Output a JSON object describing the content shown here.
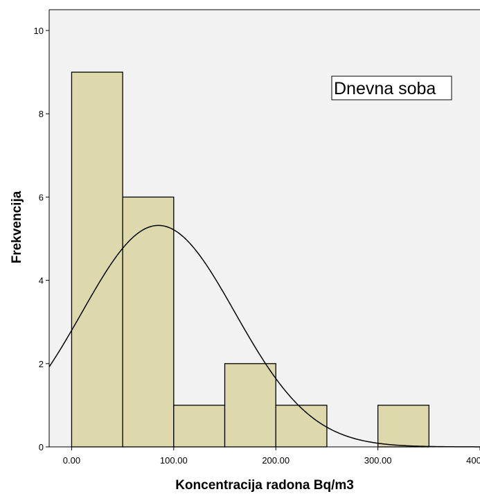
{
  "chart_data": {
    "type": "bar",
    "subtype": "histogram-with-normal-curve",
    "annotation": "Dnevna soba",
    "xlabel": "Koncentracija radona Bq/m3",
    "ylabel": "Frekvencija",
    "xlim": [
      -22,
      400
    ],
    "ylim": [
      0,
      10.5
    ],
    "x_ticks": [
      0,
      100,
      200,
      300,
      400
    ],
    "x_tick_labels": [
      "0.00",
      "100.00",
      "200.00",
      "300.00",
      "400.00"
    ],
    "y_ticks": [
      0,
      2,
      4,
      6,
      8,
      10
    ],
    "y_tick_labels": [
      "0",
      "2",
      "4",
      "6",
      "8",
      "10"
    ],
    "bins": [
      {
        "start": 0,
        "end": 50,
        "count": 9
      },
      {
        "start": 50,
        "end": 100,
        "count": 6
      },
      {
        "start": 100,
        "end": 150,
        "count": 1
      },
      {
        "start": 150,
        "end": 200,
        "count": 2
      },
      {
        "start": 200,
        "end": 250,
        "count": 1
      },
      {
        "start": 250,
        "end": 300,
        "count": 0
      },
      {
        "start": 300,
        "end": 350,
        "count": 1
      }
    ],
    "normal_curve": {
      "mean": 85,
      "sd": 75,
      "n": 20,
      "bin_width": 50
    },
    "colors": {
      "bar_fill": "#ded9ac",
      "bar_stroke": "#000000",
      "plot_bg": "#f2f2f2",
      "curve": "#000000"
    },
    "grid": false,
    "legend": "none"
  }
}
